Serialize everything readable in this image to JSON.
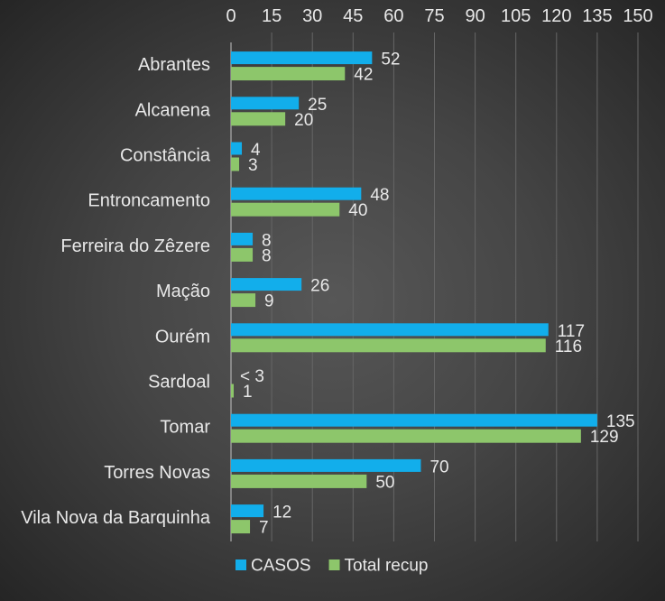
{
  "chart_data": {
    "type": "bar",
    "orientation": "horizontal",
    "categories": [
      "Abrantes",
      "Alcanena",
      "Constância",
      "Entroncamento",
      "Ferreira do Zêzere",
      "Mação",
      "Ourém",
      "Sardoal",
      "Tomar",
      "Torres Novas",
      "Vila Nova da Barquinha"
    ],
    "series": [
      {
        "name": "CASOS",
        "color": "#12aeeb",
        "values": [
          52,
          25,
          4,
          48,
          8,
          26,
          117,
          null,
          135,
          70,
          12
        ],
        "data_labels": [
          "52",
          "25",
          "4",
          "48",
          "8",
          "26",
          "117",
          "< 3",
          "135",
          "70",
          "12"
        ]
      },
      {
        "name": "Total recup",
        "color": "#8dc66b",
        "values": [
          42,
          20,
          3,
          40,
          8,
          9,
          116,
          1,
          129,
          50,
          7
        ],
        "data_labels": [
          "42",
          "20",
          "3",
          "40",
          "8",
          "9",
          "116",
          "1",
          "129",
          "50",
          "7"
        ]
      }
    ],
    "value_axis": {
      "min": 0,
      "max": 150,
      "ticks": [
        0,
        15,
        30,
        45,
        60,
        75,
        90,
        105,
        120,
        135,
        150
      ],
      "position": "top"
    },
    "grid": true,
    "legend": "bottom"
  }
}
